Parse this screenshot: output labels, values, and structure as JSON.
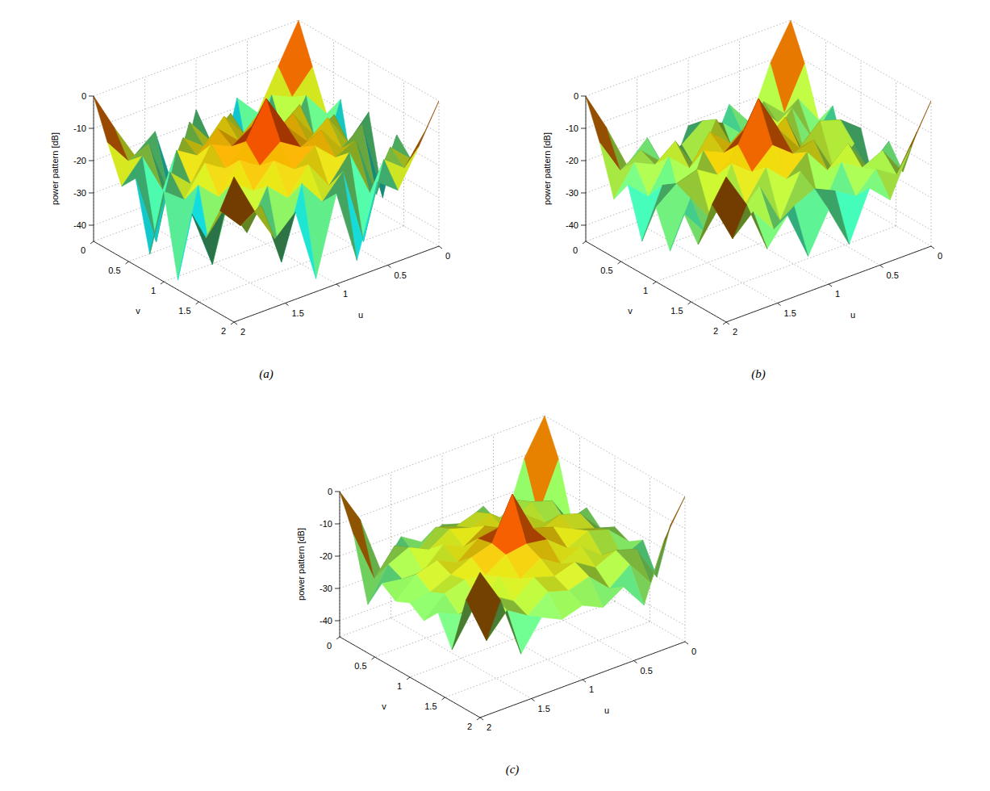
{
  "chart_data": [
    {
      "type": "surface",
      "title": "(a)",
      "x_label": "u",
      "y_label": "v",
      "z_label": "power pattern [dB]",
      "x": [
        0,
        0.2,
        0.4,
        0.6,
        0.8,
        1,
        1.2,
        1.4,
        1.6,
        1.8,
        2
      ],
      "y": [
        0,
        0.2,
        0.4,
        0.6,
        0.8,
        1,
        1.2,
        1.4,
        1.6,
        1.8,
        2
      ],
      "z": [
        [
          0,
          -12,
          -24,
          -17,
          -42,
          -16,
          -40,
          -18,
          -23,
          -12,
          0
        ],
        [
          -12,
          -19,
          -16,
          -38,
          -17,
          -23,
          -15,
          -35,
          -17,
          -20,
          -12
        ],
        [
          -24,
          -16,
          -28,
          -14,
          -21,
          -13,
          -20,
          -15,
          -29,
          -16,
          -23
        ],
        [
          -17,
          -36,
          -14,
          -19,
          -12,
          -18,
          -12,
          -18,
          -14,
          -40,
          -18
        ],
        [
          -41,
          -17,
          -21,
          -12,
          -16,
          -11,
          -15,
          -12,
          -22,
          -16,
          -39
        ],
        [
          -16,
          -23,
          -13,
          -18,
          -11,
          0,
          -11,
          -17,
          -13,
          -22,
          -17
        ],
        [
          -40,
          -15,
          -20,
          -12,
          -15,
          -11,
          -16,
          -12,
          -21,
          -15,
          -42
        ],
        [
          -18,
          -34,
          -15,
          -18,
          -12,
          -17,
          -12,
          -19,
          -14,
          -37,
          -19
        ],
        [
          -23,
          -17,
          -29,
          -14,
          -22,
          -13,
          -21,
          -15,
          -27,
          -16,
          -24
        ],
        [
          -12,
          -21,
          -16,
          -39,
          -15,
          -22,
          -14,
          -36,
          -16,
          -20,
          -13
        ],
        [
          0,
          -12,
          -23,
          -18,
          -40,
          -17,
          -41,
          -18,
          -24,
          -13,
          0
        ]
      ],
      "xlim": [
        0,
        2
      ],
      "ylim": [
        0,
        2
      ],
      "zlim": [
        -45,
        0
      ],
      "xticks": [
        0,
        0.5,
        1,
        1.5,
        2
      ],
      "yticks": [
        0,
        0.5,
        1,
        1.5,
        2
      ],
      "zticks": [
        -40,
        -30,
        -20,
        -10,
        0
      ],
      "grid": true
    },
    {
      "type": "surface",
      "title": "(b)",
      "x_label": "u",
      "y_label": "v",
      "z_label": "power pattern [dB]",
      "x": [
        0,
        0.2,
        0.4,
        0.6,
        0.8,
        1,
        1.2,
        1.4,
        1.6,
        1.8,
        2
      ],
      "y": [
        0,
        0.2,
        0.4,
        0.6,
        0.8,
        1,
        1.2,
        1.4,
        1.6,
        1.8,
        2
      ],
      "z": [
        [
          0,
          -11,
          -27,
          -19,
          -33,
          -21,
          -36,
          -20,
          -26,
          -12,
          0
        ],
        [
          -11,
          -24,
          -18,
          -26,
          -20,
          -17,
          -22,
          -25,
          -19,
          -23,
          -12
        ],
        [
          -26,
          -17,
          -22,
          -15,
          -29,
          -14,
          -27,
          -16,
          -21,
          -18,
          -27
        ],
        [
          -19,
          -27,
          -15,
          -23,
          -14,
          -19,
          -13,
          -22,
          -16,
          -26,
          -20
        ],
        [
          -34,
          -19,
          -28,
          -13,
          -18,
          -12,
          -17,
          -14,
          -30,
          -20,
          -35
        ],
        [
          -21,
          -16,
          -14,
          -20,
          -12,
          0,
          -12,
          -19,
          -15,
          -17,
          -22
        ],
        [
          -37,
          -21,
          -27,
          -15,
          -17,
          -12,
          -18,
          -13,
          -28,
          -19,
          -33
        ],
        [
          -20,
          -26,
          -16,
          -22,
          -14,
          -20,
          -14,
          -23,
          -15,
          -27,
          -19
        ],
        [
          -27,
          -18,
          -21,
          -17,
          -30,
          -15,
          -28,
          -15,
          -22,
          -17,
          -26
        ],
        [
          -12,
          -23,
          -19,
          -25,
          -21,
          -18,
          -21,
          -26,
          -18,
          -24,
          -11
        ],
        [
          0,
          -12,
          -26,
          -20,
          -35,
          -22,
          -34,
          -19,
          -27,
          -11,
          0
        ]
      ],
      "xlim": [
        0,
        2
      ],
      "ylim": [
        0,
        2
      ],
      "zlim": [
        -45,
        0
      ],
      "xticks": [
        0,
        0.5,
        1,
        1.5,
        2
      ],
      "yticks": [
        0,
        0.5,
        1,
        1.5,
        2
      ],
      "zticks": [
        -40,
        -30,
        -20,
        -10,
        0
      ],
      "grid": true
    },
    {
      "type": "surface",
      "title": "(c)",
      "x_label": "u",
      "y_label": "v",
      "z_label": "power pattern [dB]",
      "x": [
        0,
        0.2,
        0.4,
        0.6,
        0.8,
        1,
        1.2,
        1.4,
        1.6,
        1.8,
        2
      ],
      "y": [
        0,
        0.2,
        0.4,
        0.6,
        0.8,
        1,
        1.2,
        1.4,
        1.6,
        1.8,
        2
      ],
      "z": [
        [
          0,
          -11,
          -30,
          -21,
          -24,
          -22,
          -25,
          -21,
          -29,
          -11,
          0
        ],
        [
          -11,
          -26,
          -19,
          -23,
          -18,
          -20,
          -18,
          -24,
          -19,
          -27,
          -11
        ],
        [
          -29,
          -19,
          -17,
          -21,
          -16,
          -18,
          -16,
          -20,
          -17,
          -20,
          -30
        ],
        [
          -21,
          -23,
          -21,
          -16,
          -19,
          -15,
          -19,
          -16,
          -22,
          -22,
          -21
        ],
        [
          -25,
          -18,
          -16,
          -19,
          -14,
          -13,
          -14,
          -19,
          -16,
          -18,
          -24
        ],
        [
          -22,
          -20,
          -18,
          -15,
          -13,
          0,
          -13,
          -15,
          -18,
          -21,
          -22
        ],
        [
          -24,
          -18,
          -16,
          -19,
          -14,
          -13,
          -14,
          -18,
          -17,
          -19,
          -25
        ],
        [
          -21,
          -24,
          -21,
          -16,
          -19,
          -15,
          -19,
          -16,
          -21,
          -23,
          -20
        ],
        [
          -30,
          -19,
          -17,
          -20,
          -16,
          -18,
          -16,
          -21,
          -17,
          -19,
          -29
        ],
        [
          -11,
          -27,
          -19,
          -24,
          -18,
          -20,
          -18,
          -23,
          -19,
          -26,
          -11
        ],
        [
          0,
          -11,
          -29,
          -21,
          -25,
          -22,
          -24,
          -21,
          -30,
          -11,
          0
        ]
      ],
      "xlim": [
        0,
        2
      ],
      "ylim": [
        0,
        2
      ],
      "zlim": [
        -45,
        0
      ],
      "xticks": [
        0,
        0.5,
        1,
        1.5,
        2
      ],
      "yticks": [
        0,
        0.5,
        1,
        1.5,
        2
      ],
      "zticks": [
        -40,
        -30,
        -20,
        -10,
        0
      ],
      "grid": true
    }
  ]
}
